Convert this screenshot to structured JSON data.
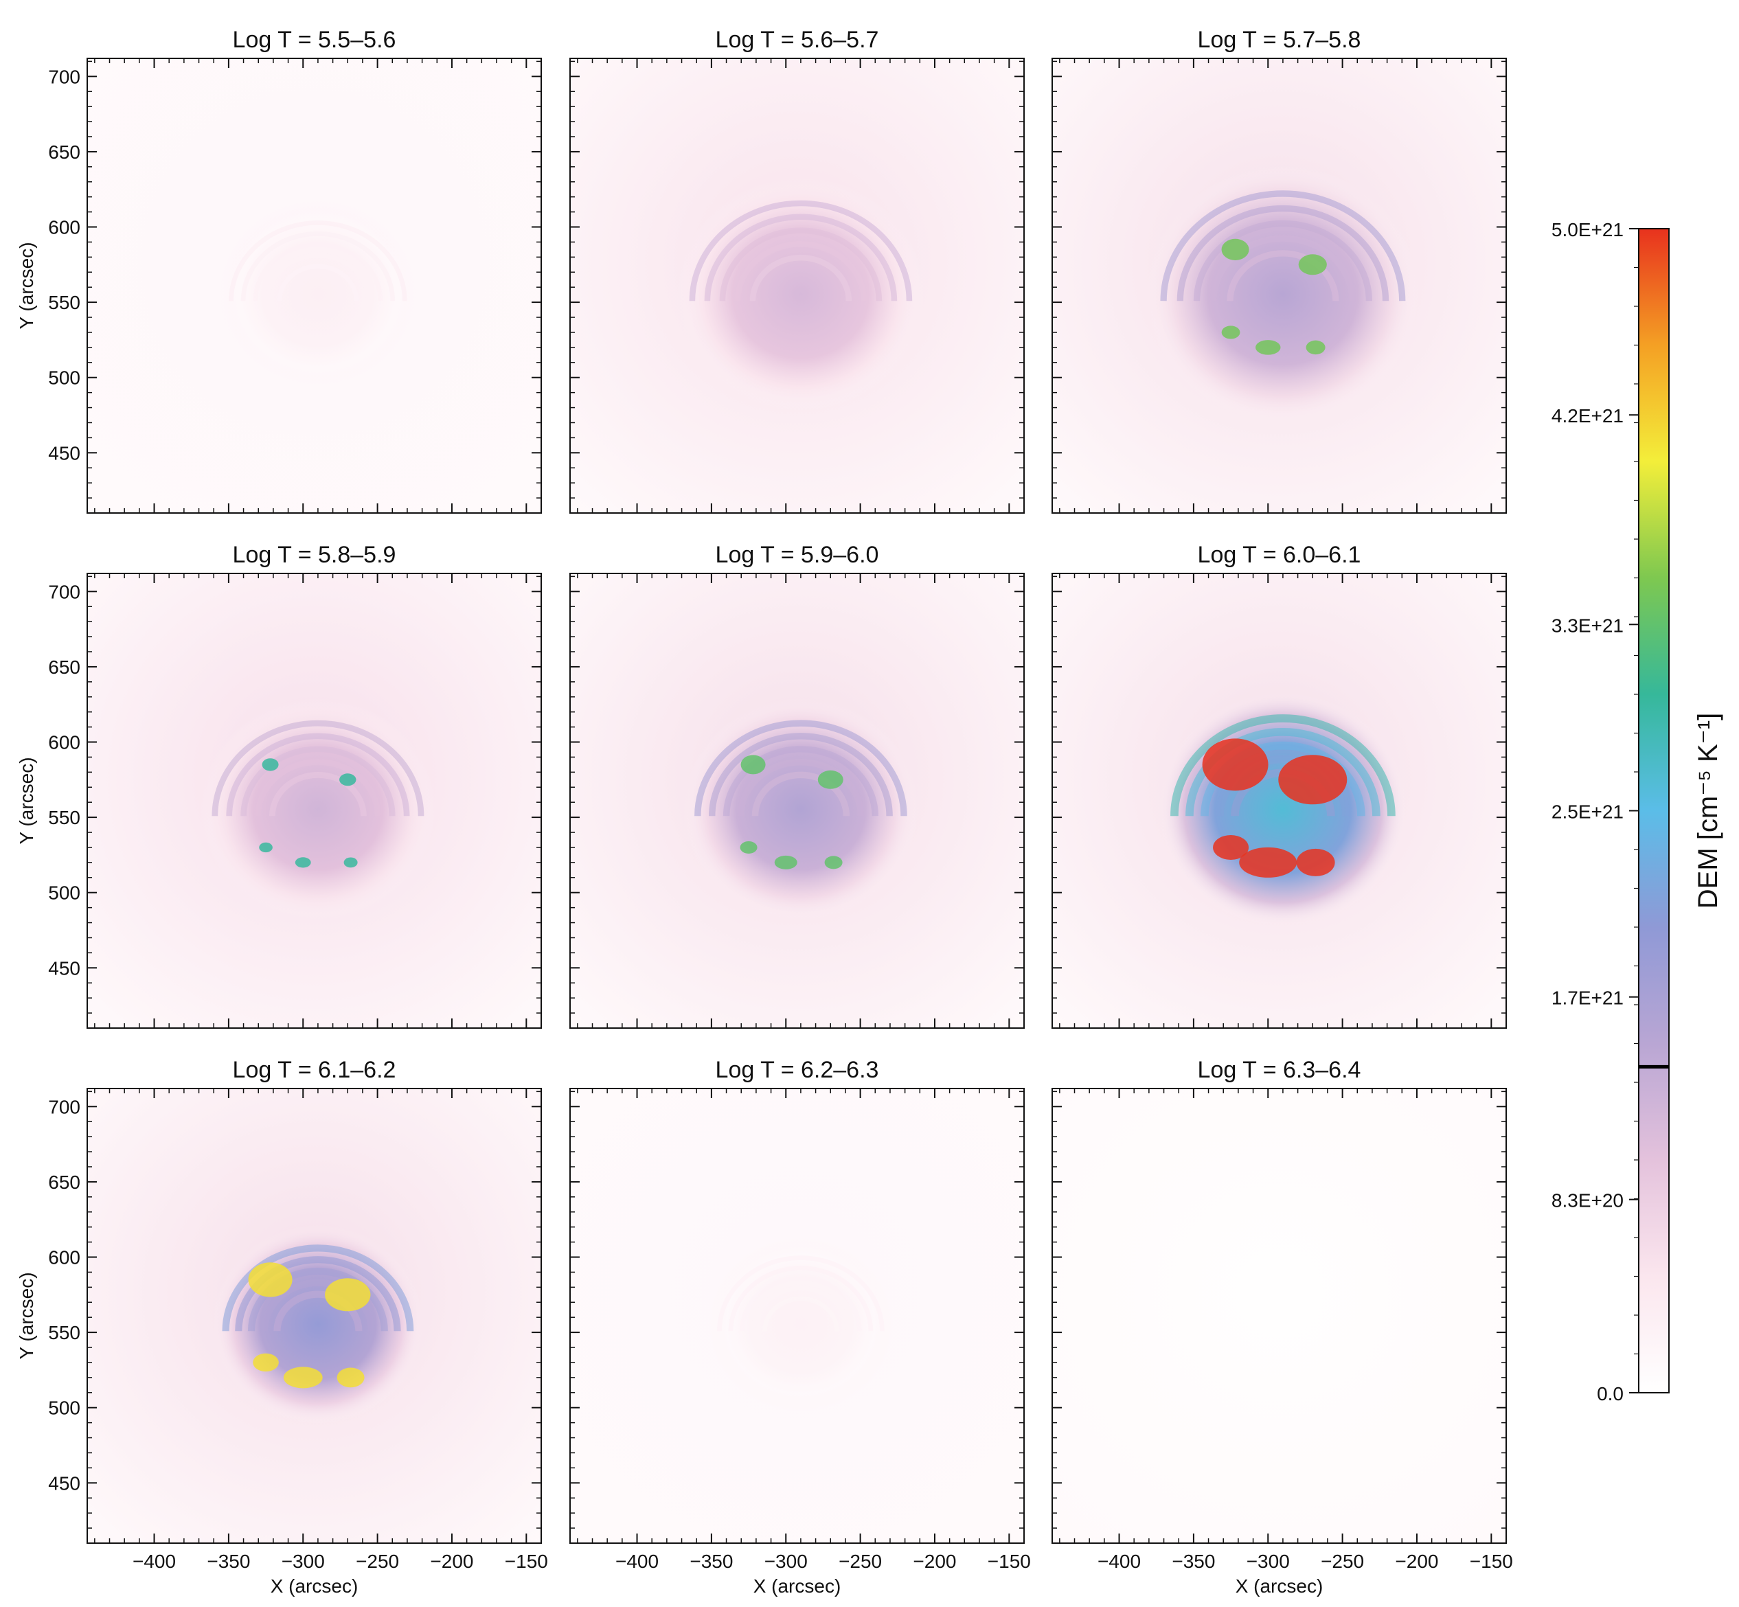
{
  "chart_data": {
    "type": "heatmap",
    "xlabel": "X (arcsec)",
    "ylabel": "Y (arcsec)",
    "xlim": [
      -445,
      -140
    ],
    "ylim": [
      410,
      712
    ],
    "xticks": [
      -400,
      -350,
      -300,
      -250,
      -200,
      -150
    ],
    "xtick_labels": [
      "−400",
      "−350",
      "−300",
      "−250",
      "−200",
      "−150"
    ],
    "yticks": [
      450,
      500,
      550,
      600,
      650,
      700
    ],
    "ytick_labels": [
      "450",
      "500",
      "550",
      "600",
      "650",
      "700"
    ],
    "panels": [
      {
        "title": "Log T = 5.5–5.6",
        "intensity": 0.12,
        "extent": 0.8,
        "hot": 0.0
      },
      {
        "title": "Log T = 5.6–5.7",
        "intensity": 0.42,
        "extent": 1.0,
        "hot": 0.05
      },
      {
        "title": "Log T = 5.7–5.8",
        "intensity": 0.55,
        "extent": 1.1,
        "hot": 0.3
      },
      {
        "title": "Log T = 5.8–5.9",
        "intensity": 0.45,
        "extent": 0.95,
        "hot": 0.1
      },
      {
        "title": "Log T = 5.9–6.0",
        "intensity": 0.58,
        "extent": 0.95,
        "hot": 0.25
      },
      {
        "title": "Log T = 6.0–6.1",
        "intensity": 0.95,
        "extent": 1.0,
        "hot": 1.0
      },
      {
        "title": "Log T = 6.1–6.2",
        "intensity": 0.7,
        "extent": 0.85,
        "hot": 0.6
      },
      {
        "title": "Log T = 6.2–6.3",
        "intensity": 0.1,
        "extent": 0.75,
        "hot": 0.0
      },
      {
        "title": "Log T = 6.3–6.4",
        "intensity": 0.02,
        "extent": 0.5,
        "hot": 0.0
      }
    ],
    "colorbar": {
      "label": "DEM [cm⁻⁵ K⁻¹]",
      "min": 0,
      "max": 5e+21,
      "tick_values": [
        0,
        8.3e+20,
        1.7e+21,
        2.5e+21,
        3.3e+21,
        4.2e+21,
        5e+21
      ],
      "tick_labels": [
        "0.0",
        "8.3E+20",
        "1.7E+21",
        "2.5E+21",
        "3.3E+21",
        "4.2E+21",
        "5.0E+21"
      ],
      "marker_value": 1.4e+21
    },
    "colors": {
      "stops": [
        "#ffffff",
        "#fbe6ee",
        "#e4c2dc",
        "#b9a6d4",
        "#8f99d6",
        "#5bbde8",
        "#36b89a",
        "#7ec850",
        "#f3ee3a",
        "#f4a024",
        "#e8321e"
      ]
    }
  }
}
